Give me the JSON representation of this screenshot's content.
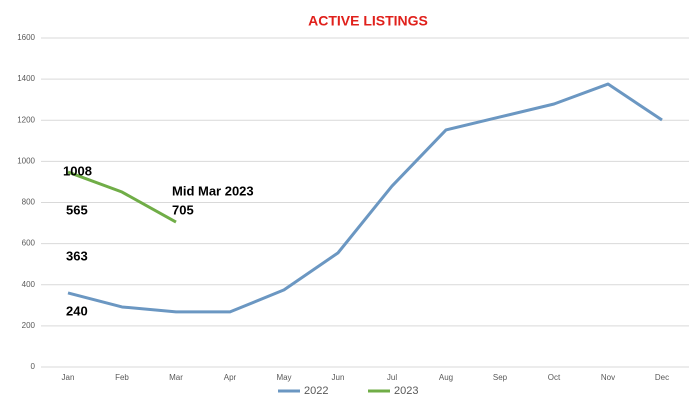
{
  "chart_data": {
    "type": "line",
    "title": "ACTIVE LISTINGS",
    "categories": [
      "Jan",
      "Feb",
      "Mar",
      "Apr",
      "May",
      "Jun",
      "Jul",
      "Aug",
      "Sep",
      "Oct",
      "Nov",
      "Dec"
    ],
    "series": [
      {
        "name": "2022",
        "color": "#6b97c2",
        "values": [
          360,
          292,
          268,
          268,
          375,
          555,
          880,
          1153,
          1216,
          1279,
          1376,
          1201
        ]
      },
      {
        "name": "2023",
        "color": "#70ad47",
        "values": [
          948,
          851,
          705,
          null,
          null,
          null,
          null,
          null,
          null,
          null,
          null,
          null
        ]
      }
    ],
    "annotations": [
      "1008",
      "565",
      "363",
      "240",
      "Mid Mar 2023",
      "705"
    ],
    "ylim": [
      0,
      1600
    ],
    "yticks": [
      0,
      200,
      400,
      600,
      800,
      1000,
      1200,
      1400,
      1600
    ],
    "grid": true,
    "legend": "bottom"
  }
}
